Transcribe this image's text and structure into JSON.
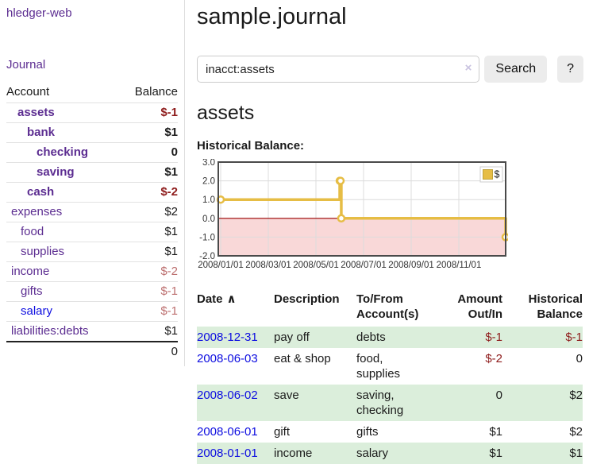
{
  "colors": {
    "link_purple": "#5c2d91",
    "link_blue": "#0d0de0",
    "negative_strong": "#8e1c1c",
    "negative_soft": "#bc6f6f",
    "row_shade_green": "#dbeedb",
    "divider_gray": "#dddddd",
    "chart_line_gold": "#e6bd45",
    "chart_negative_fill": "#f9d8d8",
    "chart_zero_line": "#990000",
    "chart_border": "#4a4a4a",
    "chart_grid": "#dcdcdc"
  },
  "sidebar": {
    "brand": "hledger-web",
    "nav_journal": "Journal",
    "header": {
      "account": "Account",
      "balance": "Balance"
    },
    "accounts": [
      {
        "name": "assets",
        "balance": "$-1",
        "depth": 1,
        "bold": true,
        "neg": "strong"
      },
      {
        "name": "bank",
        "balance": "$1",
        "depth": 2,
        "bold": true,
        "neg": null
      },
      {
        "name": "checking",
        "balance": "0",
        "depth": 3,
        "bold": true,
        "neg": null
      },
      {
        "name": "saving",
        "balance": "$1",
        "depth": 3,
        "bold": true,
        "neg": null
      },
      {
        "name": "cash",
        "balance": "$-2",
        "depth": 2,
        "bold": true,
        "neg": "strong"
      },
      {
        "name": "expenses",
        "balance": "$2",
        "depth": 1,
        "bold": false,
        "neg": null
      },
      {
        "name": "food",
        "balance": "$1",
        "depth": 2,
        "bold": false,
        "neg": null
      },
      {
        "name": "supplies",
        "balance": "$1",
        "depth": 2,
        "bold": false,
        "neg": null
      },
      {
        "name": "income",
        "balance": "$-2",
        "depth": 1,
        "bold": false,
        "neg": "soft"
      },
      {
        "name": "gifts",
        "balance": "$-1",
        "depth": 2,
        "bold": false,
        "neg": "soft"
      },
      {
        "name": "salary",
        "balance": "$-1",
        "depth": 2,
        "bold": false,
        "neg": "soft",
        "blue": true
      },
      {
        "name": "liabilities:debts",
        "balance": "$1",
        "depth": 1,
        "bold": false,
        "neg": null
      }
    ],
    "total": "0"
  },
  "header": {
    "title": "sample.journal"
  },
  "search": {
    "value": "inacct:assets",
    "clear_icon": "×",
    "button_label": "Search",
    "help_label": "?"
  },
  "account_page": {
    "title": "assets",
    "chart_label": "Historical Balance:"
  },
  "chart_data": {
    "type": "line",
    "step": true,
    "title": "Historical Balance",
    "series": [
      {
        "name": "$",
        "points": [
          {
            "date": "2008-01-01",
            "value": 1
          },
          {
            "date": "2008-06-01",
            "value": 2
          },
          {
            "date": "2008-06-02",
            "value": 2
          },
          {
            "date": "2008-06-03",
            "value": 0
          },
          {
            "date": "2008-12-31",
            "value": -1
          }
        ]
      }
    ],
    "ylim": [
      -2,
      3
    ],
    "yticks": [
      {
        "value": 3,
        "label": "3.0"
      },
      {
        "value": 2,
        "label": "2.0"
      },
      {
        "value": 1,
        "label": "1.0"
      },
      {
        "value": 0,
        "label": "0.0"
      },
      {
        "value": -1,
        "label": "-1.0"
      },
      {
        "value": -2,
        "label": "-2.0"
      }
    ],
    "xticks": [
      {
        "month_offset": 0,
        "label": "2008/01/01"
      },
      {
        "month_offset": 2,
        "label": "2008/03/01"
      },
      {
        "month_offset": 4,
        "label": "2008/05/01"
      },
      {
        "month_offset": 6,
        "label": "2008/07/01"
      },
      {
        "month_offset": 8,
        "label": "2008/09/01"
      },
      {
        "month_offset": 10,
        "label": "2008/11/01"
      }
    ],
    "grid": true,
    "legend_position": "top-right",
    "negative_region_shaded": true
  },
  "register": {
    "sort_indicator": "∧",
    "columns": [
      {
        "lines": [
          "Date"
        ],
        "align": "left",
        "sortable": true
      },
      {
        "lines": [
          "Description"
        ],
        "align": "left"
      },
      {
        "lines": [
          "To/From",
          "Account(s)"
        ],
        "align": "left"
      },
      {
        "lines": [
          "Amount",
          "Out/In"
        ],
        "align": "right"
      },
      {
        "lines": [
          "Historical",
          "Balance"
        ],
        "align": "right"
      }
    ],
    "rows": [
      {
        "date": "2008-12-31",
        "description": "pay off",
        "accounts": "debts",
        "amount": "$-1",
        "amount_negative": true,
        "balance": "$-1",
        "balance_negative": true,
        "shaded": true
      },
      {
        "date": "2008-06-03",
        "description": "eat & shop",
        "accounts": "food, supplies",
        "amount": "$-2",
        "amount_negative": true,
        "balance": "0",
        "balance_negative": false,
        "shaded": false
      },
      {
        "date": "2008-06-02",
        "description": "save",
        "accounts": "saving, checking",
        "amount": "0",
        "amount_negative": false,
        "balance": "$2",
        "balance_negative": false,
        "shaded": true
      },
      {
        "date": "2008-06-01",
        "description": "gift",
        "accounts": "gifts",
        "amount": "$1",
        "amount_negative": false,
        "balance": "$2",
        "balance_negative": false,
        "shaded": false
      },
      {
        "date": "2008-01-01",
        "description": "income",
        "accounts": "salary",
        "amount": "$1",
        "amount_negative": false,
        "balance": "$1",
        "balance_negative": false,
        "shaded": true
      }
    ]
  }
}
